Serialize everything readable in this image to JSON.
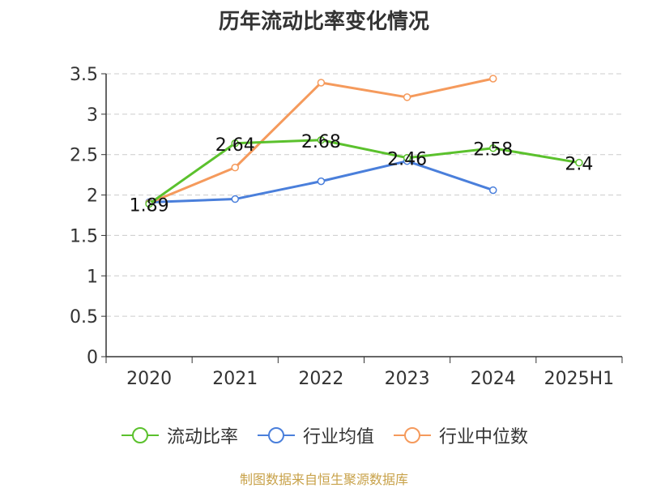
{
  "chart_data": {
    "type": "line",
    "title": "历年流动比率变化情况",
    "categories": [
      "2020",
      "2021",
      "2022",
      "2023",
      "2024",
      "2025H1"
    ],
    "ylim": [
      0,
      3.5
    ],
    "yticks": [
      "0",
      "0.5",
      "1",
      "1.5",
      "2",
      "2.5",
      "3",
      "3.5"
    ],
    "grid": true,
    "legend_position": "bottom",
    "series": [
      {
        "name": "流动比率",
        "color": "#5bc12d",
        "values": [
          1.89,
          2.64,
          2.68,
          2.46,
          2.58,
          2.4
        ],
        "labels": [
          "1.89",
          "2.64",
          "2.68",
          "2.46",
          "2.58",
          "2.4"
        ]
      },
      {
        "name": "行业均值",
        "color": "#4a7fdb",
        "values": [
          1.91,
          1.95,
          2.17,
          2.42,
          2.06,
          null
        ]
      },
      {
        "name": "行业中位数",
        "color": "#f59a5c",
        "values": [
          1.9,
          2.34,
          3.39,
          3.21,
          3.44,
          null
        ]
      }
    ]
  },
  "source": "制图数据来自恒生聚源数据库"
}
